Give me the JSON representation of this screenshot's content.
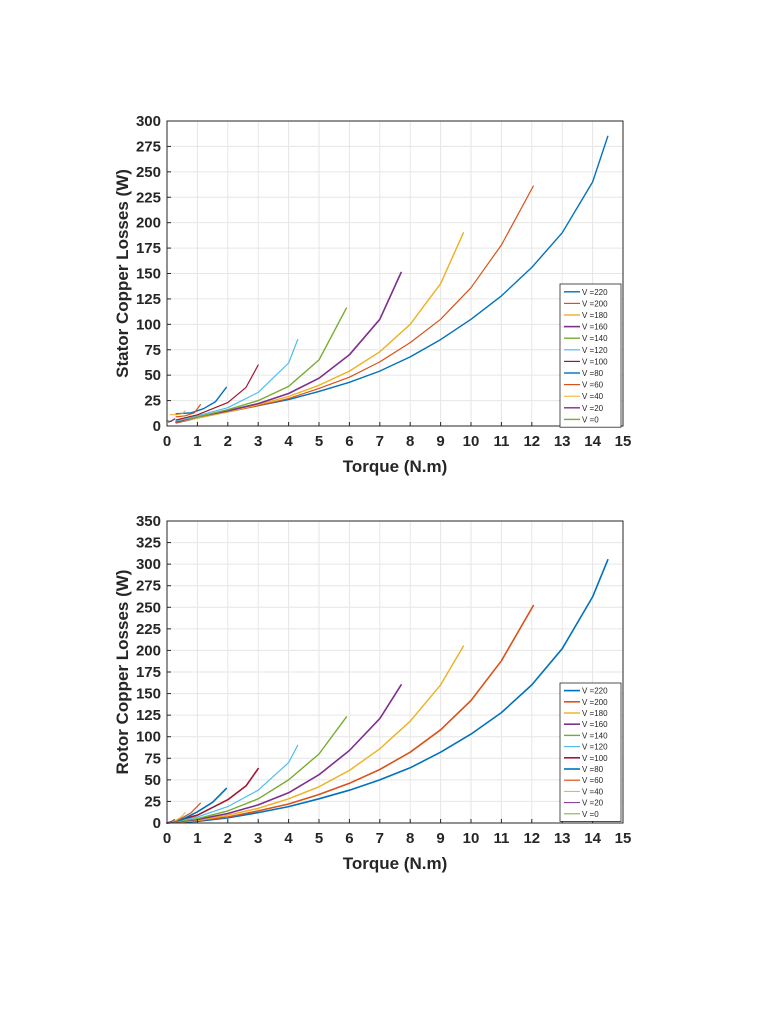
{
  "colors": {
    "c1": "#0072BD",
    "c2": "#D95319",
    "c3": "#EDB120",
    "c4": "#7E2F8E",
    "c5": "#77AC30",
    "c6": "#4DBEEE",
    "c7": "#A2142F"
  },
  "chart_data": [
    {
      "type": "line",
      "title": "",
      "xlabel": "Torque (N.m)",
      "ylabel": "Stator Copper Losses (W)",
      "xlim": [
        0,
        15
      ],
      "ylim": [
        0,
        300
      ],
      "xticks": [
        0,
        1,
        2,
        3,
        4,
        5,
        6,
        7,
        8,
        9,
        10,
        11,
        12,
        13,
        14,
        15
      ],
      "yticks": [
        0,
        25,
        50,
        75,
        100,
        125,
        150,
        175,
        200,
        225,
        250,
        275,
        300
      ],
      "grid": true,
      "legend_position": "right",
      "series": [
        {
          "name": "V =220",
          "color": "#0072BD",
          "width": 1.4,
          "x": [
            0.3,
            1,
            2,
            3,
            4,
            5,
            6,
            7,
            8,
            9,
            10,
            11,
            12,
            13,
            14,
            14.5
          ],
          "y": [
            3,
            8,
            14,
            20,
            26,
            34,
            43,
            54,
            68,
            85,
            105,
            128,
            156,
            190,
            240,
            285
          ]
        },
        {
          "name": "V =200",
          "color": "#D95319",
          "width": 1.2,
          "x": [
            0.3,
            1,
            2,
            3,
            4,
            5,
            6,
            7,
            8,
            9,
            10,
            11,
            12.05
          ],
          "y": [
            3,
            8,
            14,
            20,
            27,
            37,
            48,
            63,
            82,
            105,
            136,
            178,
            236
          ]
        },
        {
          "name": "V =180",
          "color": "#EDB120",
          "width": 1.4,
          "x": [
            0.3,
            1,
            2,
            3,
            4,
            5,
            6,
            7,
            8,
            9,
            9.75
          ],
          "y": [
            4,
            8,
            14,
            21,
            29,
            40,
            54,
            73,
            100,
            140,
            190
          ]
        },
        {
          "name": "V =160",
          "color": "#7E2F8E",
          "width": 1.6,
          "x": [
            0.3,
            1,
            2,
            3,
            4,
            5,
            6,
            7,
            7.7
          ],
          "y": [
            4,
            9,
            15,
            22,
            32,
            47,
            70,
            105,
            151
          ]
        },
        {
          "name": "V =140",
          "color": "#77AC30",
          "width": 1.4,
          "x": [
            0.3,
            1,
            2,
            3,
            4,
            5,
            5.9
          ],
          "y": [
            5,
            9,
            16,
            25,
            39,
            65,
            116
          ]
        },
        {
          "name": "V =120",
          "color": "#4DBEEE",
          "width": 1.2,
          "x": [
            0.3,
            1,
            2,
            3,
            4,
            4.3
          ],
          "y": [
            5,
            10,
            18,
            33,
            62,
            85
          ]
        },
        {
          "name": "V =100",
          "color": "#A2142F",
          "width": 1.2,
          "x": [
            0.3,
            1,
            2,
            2.6,
            3
          ],
          "y": [
            6,
            11,
            23,
            38,
            60
          ]
        },
        {
          "name": "V =80",
          "color": "#0072BD",
          "width": 1.4,
          "x": [
            0.3,
            0.8,
            1.2,
            1.6,
            1.95
          ],
          "y": [
            12,
            13,
            17,
            24,
            38
          ]
        },
        {
          "name": "V =60",
          "color": "#D95319",
          "width": 1.2,
          "x": [
            0.3,
            0.6,
            0.9,
            1.1
          ],
          "y": [
            9,
            10,
            13,
            21
          ]
        },
        {
          "name": "V =40",
          "color": "#EDB120",
          "width": 1.0,
          "x": [
            0.1,
            0.3,
            0.5,
            0.6
          ],
          "y": [
            11,
            11,
            12,
            15
          ]
        },
        {
          "name": "V =20",
          "color": "#7E2F8E",
          "width": 1.4,
          "x": [
            0.05,
            0.15,
            0.25
          ],
          "y": [
            4,
            5,
            7
          ]
        },
        {
          "name": "V =0",
          "color": "#77AC30",
          "width": 1.4,
          "x": [
            0,
            0.05
          ],
          "y": [
            5,
            5
          ]
        }
      ]
    },
    {
      "type": "line",
      "title": "",
      "xlabel": "Torque (N.m)",
      "ylabel": "Rotor Copper Losses (W)",
      "xlim": [
        0,
        15
      ],
      "ylim": [
        0,
        350
      ],
      "xticks": [
        0,
        1,
        2,
        3,
        4,
        5,
        6,
        7,
        8,
        9,
        10,
        11,
        12,
        13,
        14,
        15
      ],
      "yticks": [
        0,
        25,
        50,
        75,
        100,
        125,
        150,
        175,
        200,
        225,
        250,
        275,
        300,
        325,
        350
      ],
      "grid": true,
      "legend_position": "right",
      "series": [
        {
          "name": "V =220",
          "color": "#0072BD",
          "width": 1.6,
          "x": [
            0,
            1,
            2,
            3,
            4,
            5,
            6,
            7,
            8,
            9,
            10,
            11,
            12,
            13,
            14,
            14.5
          ],
          "y": [
            0,
            2,
            6,
            12,
            19,
            28,
            38,
            50,
            64,
            82,
            103,
            128,
            160,
            202,
            262,
            305
          ]
        },
        {
          "name": "V =200",
          "color": "#D95319",
          "width": 1.6,
          "x": [
            0,
            1,
            2,
            3,
            4,
            5,
            6,
            7,
            8,
            9,
            10,
            11,
            12.05
          ],
          "y": [
            0,
            3,
            7,
            14,
            22,
            33,
            46,
            62,
            82,
            108,
            142,
            188,
            252
          ]
        },
        {
          "name": "V =180",
          "color": "#EDB120",
          "width": 1.4,
          "x": [
            0,
            1,
            2,
            3,
            4,
            5,
            6,
            7,
            8,
            9,
            9.75
          ],
          "y": [
            0,
            3,
            9,
            17,
            28,
            42,
            61,
            86,
            118,
            160,
            205
          ]
        },
        {
          "name": "V =160",
          "color": "#7E2F8E",
          "width": 1.6,
          "x": [
            0,
            1,
            2,
            3,
            4,
            5,
            6,
            7,
            7.7
          ],
          "y": [
            0,
            4,
            11,
            21,
            35,
            56,
            84,
            121,
            160
          ]
        },
        {
          "name": "V =140",
          "color": "#77AC30",
          "width": 1.4,
          "x": [
            0,
            1,
            2,
            3,
            4,
            5,
            5.9
          ],
          "y": [
            0,
            5,
            14,
            28,
            50,
            80,
            123
          ]
        },
        {
          "name": "V =120",
          "color": "#4DBEEE",
          "width": 1.2,
          "x": [
            0,
            1,
            2,
            3,
            4,
            4.3
          ],
          "y": [
            0,
            7,
            19,
            38,
            70,
            90
          ]
        },
        {
          "name": "V =100",
          "color": "#A2142F",
          "width": 1.6,
          "x": [
            0,
            1,
            2,
            2.6,
            3
          ],
          "y": [
            0,
            9,
            27,
            43,
            63
          ]
        },
        {
          "name": "V =80",
          "color": "#0072BD",
          "width": 1.6,
          "x": [
            0,
            0.5,
            1,
            1.5,
            1.95
          ],
          "y": [
            0,
            4,
            13,
            24,
            40
          ]
        },
        {
          "name": "V =60",
          "color": "#D95319",
          "width": 1.2,
          "x": [
            0,
            0.4,
            0.8,
            1.1
          ],
          "y": [
            0,
            4,
            12,
            23
          ]
        },
        {
          "name": "V =40",
          "color": "#EDB120",
          "width": 1.0,
          "x": [
            0,
            0.3,
            0.5,
            0.6
          ],
          "y": [
            0,
            3,
            8,
            12
          ]
        },
        {
          "name": "V =20",
          "color": "#7E2F8E",
          "width": 1.0,
          "x": [
            0,
            0.15,
            0.25
          ],
          "y": [
            0,
            2,
            4
          ]
        },
        {
          "name": "V =0",
          "color": "#77AC30",
          "width": 1.0,
          "x": [
            0,
            0.05
          ],
          "y": [
            0,
            0
          ]
        }
      ]
    }
  ]
}
